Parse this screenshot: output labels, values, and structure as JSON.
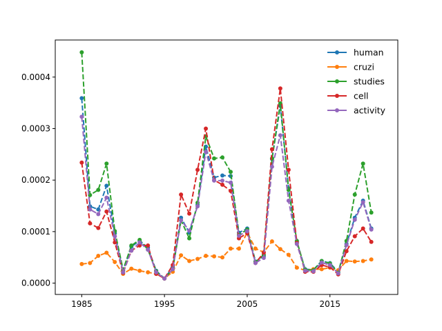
{
  "chart_data": {
    "type": "line",
    "x": [
      1985,
      1986,
      1987,
      1988,
      1989,
      1990,
      1991,
      1992,
      1993,
      1994,
      1995,
      1996,
      1997,
      1998,
      1999,
      2000,
      2001,
      2002,
      2003,
      2004,
      2005,
      2006,
      2007,
      2008,
      2009,
      2010,
      2011,
      2012,
      2013,
      2014,
      2015,
      2016,
      2017,
      2018,
      2019,
      2020
    ],
    "xlim": [
      1981.8,
      2023.2
    ],
    "ylim": [
      -2.2e-05,
      0.000472
    ],
    "xticks": [
      1985,
      1995,
      2005,
      2015
    ],
    "xtick_labels": [
      "1985",
      "1995",
      "2005",
      "2015"
    ],
    "yticks": [
      0,
      0.0001,
      0.0002,
      0.0003,
      0.0004
    ],
    "ytick_labels": [
      "0.0000",
      "0.0001",
      "0.0002",
      "0.0003",
      "0.0004"
    ],
    "legend_position": "upper-right",
    "line_style": "dashed",
    "marker": "circle",
    "series": [
      {
        "name": "human",
        "color": "#1f77b4",
        "values": [
          0.000359,
          0.000149,
          0.000143,
          0.000189,
          9.7e-05,
          2.4e-05,
          7.1e-05,
          8.2e-05,
          6.9e-05,
          2.4e-05,
          9e-06,
          3.1e-05,
          0.000127,
          9.8e-05,
          0.000152,
          0.000265,
          0.000205,
          0.000209,
          0.000208,
          9.8e-05,
          0.000106,
          4.2e-05,
          5.2e-05,
          0.000241,
          0.000344,
          0.000184,
          8e-05,
          2.7e-05,
          2.6e-05,
          4.3e-05,
          3.9e-05,
          2.2e-05,
          7.6e-05,
          0.000127,
          0.00016,
          0.000106
        ]
      },
      {
        "name": "cruzi",
        "color": "#ff7f0e",
        "values": [
          3.7e-05,
          3.9e-05,
          5.3e-05,
          5.9e-05,
          4.1e-05,
          1.8e-05,
          2.8e-05,
          2.4e-05,
          2.1e-05,
          1.8e-05,
          9e-06,
          2.2e-05,
          5.4e-05,
          4.3e-05,
          4.7e-05,
          5.3e-05,
          5.2e-05,
          5e-05,
          6.7e-05,
          6.7e-05,
          9.8e-05,
          6.7e-05,
          6e-05,
          8.1e-05,
          6.6e-05,
          5.5e-05,
          3e-05,
          2.5e-05,
          2.7e-05,
          2.7e-05,
          3e-05,
          2.5e-05,
          4.3e-05,
          4.2e-05,
          4.3e-05,
          4.6e-05
        ]
      },
      {
        "name": "studies",
        "color": "#2ca02c",
        "values": [
          0.000448,
          0.000171,
          0.000181,
          0.000232,
          0.000101,
          2.6e-05,
          7.3e-05,
          8.4e-05,
          6.5e-05,
          2.3e-05,
          9e-06,
          2.7e-05,
          0.000122,
          8.7e-05,
          0.000156,
          0.000285,
          0.000242,
          0.000244,
          0.000216,
          9.4e-05,
          0.000104,
          4.1e-05,
          5.5e-05,
          0.000242,
          0.000349,
          0.000181,
          8.2e-05,
          2.6e-05,
          2.5e-05,
          4.3e-05,
          3.8e-05,
          2e-05,
          8.2e-05,
          0.000172,
          0.000232,
          0.000137
        ]
      },
      {
        "name": "cell",
        "color": "#d62728",
        "values": [
          0.000234,
          0.000116,
          0.000107,
          0.000139,
          7.9e-05,
          2e-05,
          6.3e-05,
          7.3e-05,
          7.3e-05,
          1.8e-05,
          9e-06,
          3.5e-05,
          0.000172,
          0.000135,
          0.00022,
          0.0003,
          0.0002,
          0.000191,
          0.000179,
          8.7e-05,
          9.7e-05,
          3.9e-05,
          5.9e-05,
          0.00026,
          0.000378,
          0.00022,
          7.8e-05,
          2.2e-05,
          2.2e-05,
          3.5e-05,
          3.1e-05,
          1.7e-05,
          6.2e-05,
          9.1e-05,
          0.000106,
          8e-05
        ]
      },
      {
        "name": "activity",
        "color": "#9467bd",
        "values": [
          0.000323,
          0.000143,
          0.000134,
          0.000166,
          9.1e-05,
          2.1e-05,
          6.3e-05,
          7.9e-05,
          6.5e-05,
          2.1e-05,
          9e-06,
          2.7e-05,
          0.000122,
          0.000102,
          0.000149,
          0.000255,
          0.000199,
          0.000199,
          0.000195,
          9.2e-05,
          0.000101,
          3.9e-05,
          4.9e-05,
          0.000226,
          0.000287,
          0.00016,
          7.6e-05,
          2.4e-05,
          2.3e-05,
          4e-05,
          3.5e-05,
          1.9e-05,
          7.4e-05,
          0.000123,
          0.000157,
          0.000104
        ]
      }
    ]
  }
}
